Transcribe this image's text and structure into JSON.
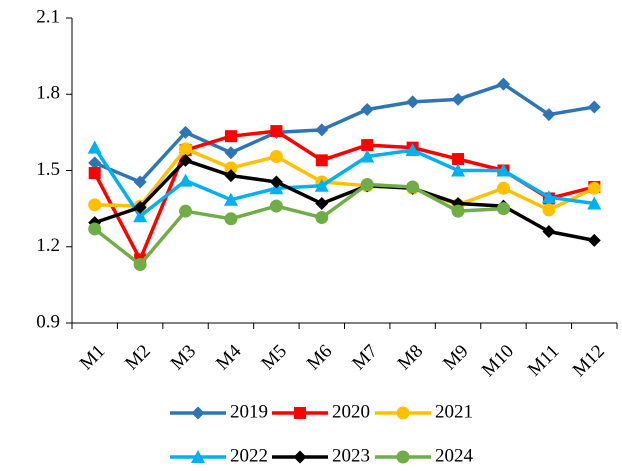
{
  "chart_data": {
    "type": "line",
    "categories": [
      "M1",
      "M2",
      "M3",
      "M4",
      "M5",
      "M6",
      "M7",
      "M8",
      "M9",
      "M10",
      "M11",
      "M12"
    ],
    "series": [
      {
        "name": "2019",
        "color": "#2e75b6",
        "marker": "diamond",
        "values": [
          1.53,
          1.455,
          1.65,
          1.57,
          1.65,
          1.66,
          1.74,
          1.77,
          1.78,
          1.84,
          1.72,
          1.75
        ]
      },
      {
        "name": "2020",
        "color": "#ff0000",
        "marker": "square",
        "values": [
          1.49,
          1.15,
          1.58,
          1.635,
          1.655,
          1.54,
          1.6,
          1.59,
          1.545,
          1.5,
          1.39,
          1.435
        ]
      },
      {
        "name": "2021",
        "color": "#ffc000",
        "marker": "circle",
        "values": [
          1.365,
          1.36,
          1.585,
          1.51,
          1.555,
          1.455,
          1.44,
          1.43,
          1.365,
          1.43,
          1.345,
          1.43
        ]
      },
      {
        "name": "2022",
        "color": "#00b0f0",
        "marker": "triangle",
        "values": [
          1.59,
          1.32,
          1.46,
          1.385,
          1.43,
          1.44,
          1.555,
          1.58,
          1.5,
          1.5,
          1.395,
          1.37
        ]
      },
      {
        "name": "2023",
        "color": "#000000",
        "marker": "diamond",
        "values": [
          1.295,
          1.355,
          1.54,
          1.48,
          1.455,
          1.37,
          1.44,
          1.43,
          1.37,
          1.36,
          1.26,
          1.225
        ]
      },
      {
        "name": "2024",
        "color": "#70ad47",
        "marker": "circle",
        "values": [
          1.27,
          1.13,
          1.34,
          1.31,
          1.36,
          1.315,
          1.445,
          1.435,
          1.34,
          1.35,
          null,
          null
        ]
      }
    ],
    "ylim": [
      0.9,
      2.1
    ],
    "yticks": [
      0.9,
      1.2,
      1.5,
      1.8,
      2.1
    ],
    "grid": false,
    "legend": "bottom"
  }
}
